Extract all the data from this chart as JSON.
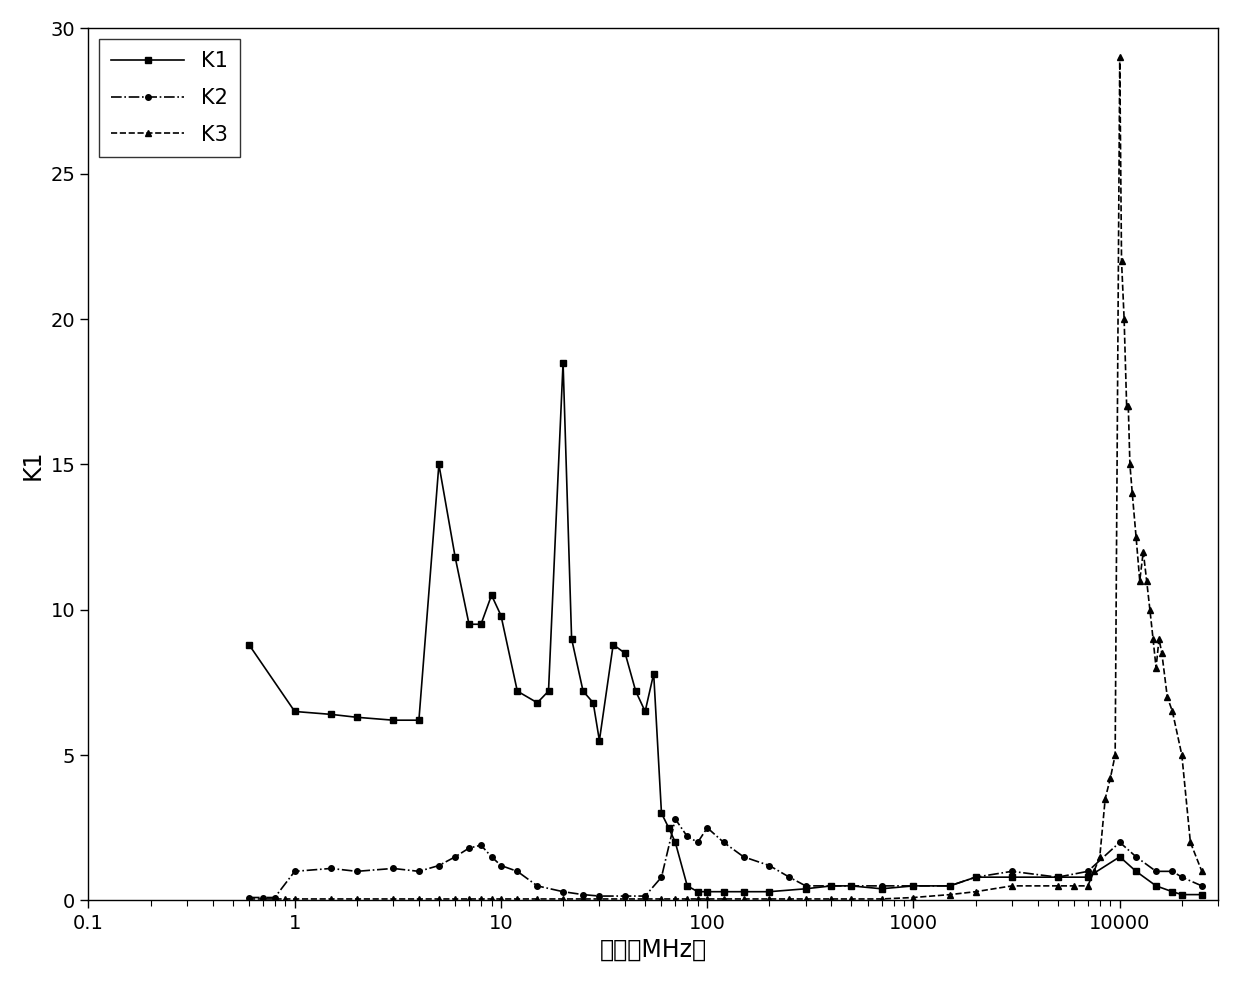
{
  "title": "",
  "xlabel": "频率（MHz）",
  "ylabel": "K1",
  "xlim": [
    0.1,
    30000
  ],
  "ylim": [
    0,
    30
  ],
  "yticks": [
    0,
    5,
    10,
    15,
    20,
    25,
    30
  ],
  "xticks": [
    0.1,
    1,
    10,
    100,
    1000,
    10000
  ],
  "xtick_labels": [
    "0.1",
    "1",
    "10",
    "100",
    "1000",
    "10000"
  ],
  "background_color": "#ffffff",
  "K1": {
    "x": [
      0.6,
      1.0,
      1.5,
      2.0,
      3.0,
      4.0,
      5.0,
      6.0,
      7.0,
      8.0,
      9.0,
      10.0,
      12.0,
      15.0,
      17.0,
      20.0,
      22.0,
      25.0,
      28.0,
      30.0,
      35.0,
      40.0,
      45.0,
      50.0,
      55.0,
      60.0,
      65.0,
      70.0,
      80.0,
      90.0,
      100.0,
      120.0,
      150.0,
      200.0,
      300.0,
      400.0,
      500.0,
      700.0,
      1000.0,
      1500.0,
      2000.0,
      3000.0,
      5000.0,
      7000.0,
      10000.0,
      12000.0,
      15000.0,
      18000.0,
      20000.0,
      25000.0
    ],
    "y": [
      8.8,
      6.5,
      6.4,
      6.3,
      6.2,
      6.2,
      15.0,
      11.8,
      9.5,
      9.5,
      10.5,
      9.8,
      7.2,
      6.8,
      7.2,
      18.5,
      9.0,
      7.2,
      6.8,
      5.5,
      8.8,
      8.5,
      7.2,
      6.5,
      7.8,
      3.0,
      2.5,
      2.0,
      0.5,
      0.3,
      0.3,
      0.3,
      0.3,
      0.3,
      0.4,
      0.5,
      0.5,
      0.4,
      0.5,
      0.5,
      0.8,
      0.8,
      0.8,
      0.8,
      1.5,
      1.0,
      0.5,
      0.3,
      0.2,
      0.2
    ],
    "linestyle": "-",
    "marker": "s",
    "markersize": 4,
    "linewidth": 1.2,
    "color": "#000000",
    "label": "K1"
  },
  "K2": {
    "x": [
      0.6,
      0.7,
      0.8,
      1.0,
      1.5,
      2.0,
      3.0,
      4.0,
      5.0,
      6.0,
      7.0,
      8.0,
      9.0,
      10.0,
      12.0,
      15.0,
      20.0,
      25.0,
      30.0,
      40.0,
      50.0,
      60.0,
      70.0,
      80.0,
      90.0,
      100.0,
      120.0,
      150.0,
      200.0,
      250.0,
      300.0,
      400.0,
      500.0,
      700.0,
      1000.0,
      1500.0,
      2000.0,
      3000.0,
      5000.0,
      7000.0,
      10000.0,
      12000.0,
      15000.0,
      18000.0,
      20000.0,
      25000.0
    ],
    "y": [
      0.1,
      0.1,
      0.1,
      1.0,
      1.1,
      1.0,
      1.1,
      1.0,
      1.2,
      1.5,
      1.8,
      1.9,
      1.5,
      1.2,
      1.0,
      0.5,
      0.3,
      0.2,
      0.15,
      0.15,
      0.15,
      0.8,
      2.8,
      2.2,
      2.0,
      2.5,
      2.0,
      1.5,
      1.2,
      0.8,
      0.5,
      0.5,
      0.5,
      0.5,
      0.5,
      0.5,
      0.8,
      1.0,
      0.8,
      1.0,
      2.0,
      1.5,
      1.0,
      1.0,
      0.8,
      0.5
    ],
    "linestyle": "-.",
    "marker": "o",
    "markersize": 4,
    "linewidth": 1.2,
    "color": "#000000",
    "label": "K2"
  },
  "K3": {
    "x": [
      0.6,
      0.7,
      0.8,
      0.9,
      1.0,
      1.5,
      2.0,
      3.0,
      4.0,
      5.0,
      6.0,
      7.0,
      8.0,
      9.0,
      10.0,
      12.0,
      15.0,
      20.0,
      25.0,
      30.0,
      40.0,
      50.0,
      60.0,
      70.0,
      80.0,
      90.0,
      100.0,
      120.0,
      150.0,
      200.0,
      250.0,
      300.0,
      400.0,
      500.0,
      700.0,
      1000.0,
      1500.0,
      2000.0,
      3000.0,
      5000.0,
      6000.0,
      7000.0,
      7500.0,
      8000.0,
      8500.0,
      9000.0,
      9500.0,
      10000.0,
      10200.0,
      10500.0,
      10800.0,
      11000.0,
      11200.0,
      11500.0,
      12000.0,
      12500.0,
      13000.0,
      13500.0,
      14000.0,
      14500.0,
      15000.0,
      15500.0,
      16000.0,
      17000.0,
      18000.0,
      20000.0,
      22000.0,
      25000.0
    ],
    "y": [
      0.05,
      0.05,
      0.05,
      0.05,
      0.05,
      0.05,
      0.05,
      0.05,
      0.05,
      0.05,
      0.05,
      0.05,
      0.05,
      0.05,
      0.05,
      0.05,
      0.05,
      0.05,
      0.05,
      0.05,
      0.05,
      0.05,
      0.05,
      0.05,
      0.05,
      0.05,
      0.05,
      0.05,
      0.05,
      0.05,
      0.05,
      0.05,
      0.05,
      0.05,
      0.05,
      0.1,
      0.2,
      0.3,
      0.5,
      0.5,
      0.5,
      0.5,
      1.0,
      1.5,
      3.5,
      4.2,
      5.0,
      29.0,
      22.0,
      20.0,
      17.0,
      17.0,
      15.0,
      14.0,
      12.5,
      11.0,
      12.0,
      11.0,
      10.0,
      9.0,
      8.0,
      9.0,
      8.5,
      7.0,
      6.5,
      5.0,
      2.0,
      1.0
    ],
    "linestyle": "--",
    "marker": "^",
    "markersize": 4,
    "linewidth": 1.2,
    "color": "#000000",
    "label": "K3"
  },
  "legend_loc": "upper left",
  "legend_fontsize": 15,
  "tick_fontsize": 14,
  "label_fontsize": 17
}
